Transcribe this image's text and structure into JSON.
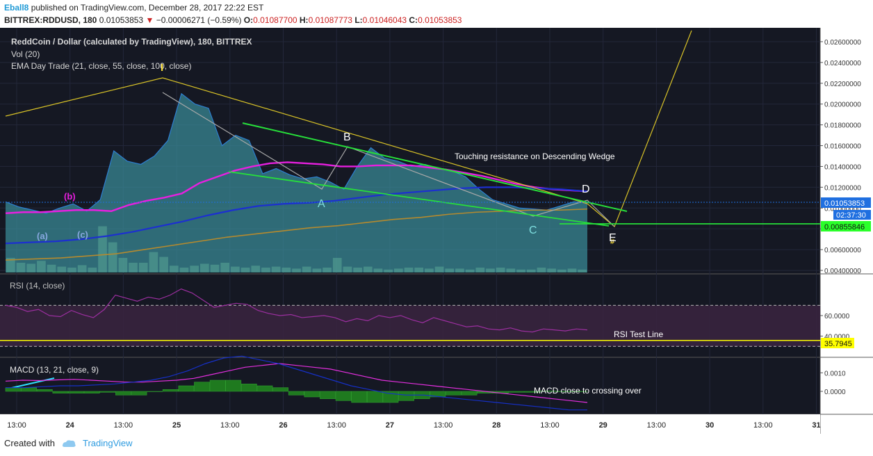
{
  "header": {
    "author": "Eball8",
    "published": "published on TradingView.com, December 28, 2017 22:22 EST",
    "symbol": "BITTREX:RDDUSD, 180",
    "last": "0.01053853",
    "change": "−0.00006271 (−0.59%)",
    "o_label": "O:",
    "o": "0.01087700",
    "h_label": "H:",
    "h": "0.01087773",
    "l_label": "L:",
    "l": "0.01046043",
    "c_label": "C:",
    "c": "0.01053853"
  },
  "legend": {
    "title": "ReddCoin / Dollar (calculated by TradingView), 180, BITTREX",
    "vol": "Vol (20)",
    "ema": "EMA Day Trade (21, close, 55, close, 100, close)"
  },
  "colors": {
    "bg": "#151823",
    "area": "#3a8c98",
    "areaLine": "#2d7fd2",
    "ema_fast": "#e81fe0",
    "ema_mid": "#1c2fd1",
    "ema_slow": "#b58a2e",
    "trend_yellow": "#d9c327",
    "trend_green": "#27e03a",
    "zigzag": "#a9a9a9",
    "rsi_line": "#9c2fa0",
    "rsi_band": "#3a2440",
    "macd": "#e52fe0",
    "signal": "#1630c8",
    "hist": "#1f7a1f",
    "price_tag": "#1f6fe0",
    "green_tag": "#2aff2a",
    "yellow_tag": "#ffff00"
  },
  "chart_data": [
    {
      "type": "area",
      "title": "ReddCoin / Dollar (calculated by TradingView), 180, BITTREX",
      "x_ticks": [
        "13:00",
        "24",
        "13:00",
        "25",
        "13:00",
        "26",
        "13:00",
        "27",
        "13:00",
        "28",
        "13:00",
        "29",
        "13:00",
        "30",
        "13:00",
        "31"
      ],
      "y_ticks": [
        "0.02600000",
        "0.02400000",
        "0.02200000",
        "0.02000000",
        "0.01800000",
        "0.01600000",
        "0.01400000",
        "0.01200000",
        "0.01000000",
        "0.00800000",
        "0.00600000",
        "0.00400000"
      ],
      "ylim": [
        0.0038,
        0.0272
      ],
      "price": [
        0.0106,
        0.0101,
        0.0098,
        0.0095,
        0.01,
        0.0104,
        0.0097,
        0.0108,
        0.0155,
        0.0145,
        0.0142,
        0.015,
        0.0165,
        0.021,
        0.02,
        0.0196,
        0.016,
        0.017,
        0.0165,
        0.0133,
        0.0138,
        0.0132,
        0.0128,
        0.013,
        0.0125,
        0.0118,
        0.014,
        0.0158,
        0.0148,
        0.0145,
        0.014,
        0.0142,
        0.0138,
        0.0136,
        0.013,
        0.0118,
        0.0108,
        0.0104,
        0.01,
        0.0099,
        0.0098,
        0.0102,
        0.0106,
        0.0105
      ],
      "ema_fast": [
        0.0095,
        0.0096,
        0.0096,
        0.0097,
        0.0098,
        0.0098,
        0.0097,
        0.0103,
        0.0107,
        0.011,
        0.0114,
        0.0124,
        0.013,
        0.0136,
        0.014,
        0.0143,
        0.0144,
        0.0143,
        0.0142,
        0.014,
        0.014,
        0.0141,
        0.0141,
        0.0141,
        0.0139,
        0.0137,
        0.0134,
        0.0131,
        0.0127,
        0.0123,
        0.012,
        0.0118,
        0.0117,
        0.0116
      ],
      "ema_mid": [
        0.0066,
        0.0067,
        0.0068,
        0.007,
        0.0073,
        0.0077,
        0.0082,
        0.0087,
        0.0093,
        0.0098,
        0.0102,
        0.0104,
        0.0105,
        0.0107,
        0.011,
        0.0113,
        0.0115,
        0.0117,
        0.0119,
        0.012,
        0.012,
        0.0119,
        0.0118,
        0.0116
      ],
      "ema_slow": [
        0.005,
        0.0051,
        0.0052,
        0.0054,
        0.0056,
        0.006,
        0.0064,
        0.0068,
        0.0072,
        0.0075,
        0.0078,
        0.0081,
        0.0083,
        0.0086,
        0.0089,
        0.0091,
        0.0094,
        0.0096,
        0.0097,
        0.0098,
        0.0098,
        0.0099
      ],
      "volume": [
        0.3,
        0.2,
        0.18,
        0.24,
        0.16,
        0.12,
        0.1,
        0.15,
        0.1,
        0.95,
        0.62,
        0.3,
        0.2,
        0.2,
        0.42,
        0.32,
        0.14,
        0.1,
        0.14,
        0.18,
        0.16,
        0.2,
        0.12,
        0.1,
        0.14,
        0.1,
        0.12,
        0.1,
        0.08,
        0.12,
        0.08,
        0.1,
        0.3,
        0.12,
        0.1,
        0.12,
        0.08,
        0.06,
        0.08,
        0.1,
        0.1,
        0.08,
        0.12,
        0.08,
        0.08,
        0.06,
        0.1,
        0.08,
        0.1,
        0.08,
        0.06,
        0.06,
        0.1,
        0.08,
        0.06,
        0.08,
        0.06
      ],
      "annotations": [
        "Touching resistance on Descending Wedge",
        "A",
        "B",
        "C",
        "D",
        "E",
        "(a)",
        "(b)",
        "(c)",
        "I"
      ],
      "price_tags": [
        "0.01053853",
        "02:37:30",
        "0.00855846"
      ]
    },
    {
      "type": "line",
      "title": "RSI (14, close)",
      "y_ticks": [
        "60.0000",
        "40.0000"
      ],
      "ylim": [
        20,
        100
      ],
      "values": [
        70,
        68,
        64,
        66,
        60,
        59,
        65,
        61,
        58,
        66,
        80,
        77,
        74,
        78,
        76,
        80,
        86,
        82,
        75,
        68,
        70,
        72,
        71,
        65,
        62,
        60,
        61,
        58,
        59,
        60,
        58,
        54,
        57,
        55,
        60,
        58,
        60,
        56,
        53,
        58,
        55,
        52,
        49,
        50,
        47,
        46,
        48,
        45,
        44,
        47,
        46,
        45,
        47,
        46
      ],
      "test_line": 35.7945,
      "test_label": "RSI Test Line",
      "test_tag": "35.7945"
    },
    {
      "type": "bar",
      "title": "MACD (13, 21, close, 9)",
      "y_ticks": [
        "0.0010",
        "0.0000"
      ],
      "ylim": [
        -0.0012,
        0.0018
      ],
      "macd": [
        0.00055,
        0.0006,
        0.00058,
        0.00062,
        0.00065,
        0.0006,
        0.00055,
        0.0005,
        0.0005,
        0.00055,
        0.0006,
        0.0007,
        0.0009,
        0.0011,
        0.0013,
        0.0014,
        0.0015,
        0.0014,
        0.0013,
        0.0012,
        0.001,
        0.0008,
        0.0006,
        0.0005,
        0.0004,
        0.0003,
        0.0002,
        0.0001,
        0.0,
        -0.0001,
        -0.0002,
        -0.0003,
        -0.0004,
        -0.0005,
        -0.0006
      ],
      "signal": [
        0.0002,
        0.0002,
        0.00025,
        0.0003,
        0.0003,
        0.00035,
        0.0004,
        0.0005,
        0.0006,
        0.0008,
        0.0011,
        0.0015,
        0.0018,
        0.0019,
        0.0017,
        0.0015,
        0.0012,
        0.0009,
        0.0006,
        0.0003,
        0.0001,
        -0.0001,
        -0.0002,
        -0.0002,
        -0.0003,
        -0.0004,
        -0.0005,
        -0.0006,
        -0.0007,
        -0.0008,
        -0.0009,
        -0.001,
        -0.001
      ],
      "hist": [
        0.0002,
        0.0002,
        0.0001,
        -0.0001,
        -0.0001,
        -0.0001,
        -5e-05,
        -0.0002,
        -0.0002,
        0.0,
        0.0001,
        0.0003,
        0.0005,
        0.0006,
        0.0006,
        0.0004,
        0.0003,
        0.0002,
        -0.0002,
        -0.0003,
        -0.0004,
        -0.0005,
        -0.0006,
        -0.0006,
        -0.0006,
        -0.0005,
        -0.0004,
        -0.0003,
        -0.0002,
        -0.0002,
        -0.0001,
        -0.0001,
        -5e-05,
        -5e-05,
        2e-05,
        0.0,
        0.0
      ],
      "annotation": "MACD close to crossing over"
    }
  ],
  "footer": {
    "created": "Created with",
    "brand": "TradingView"
  }
}
